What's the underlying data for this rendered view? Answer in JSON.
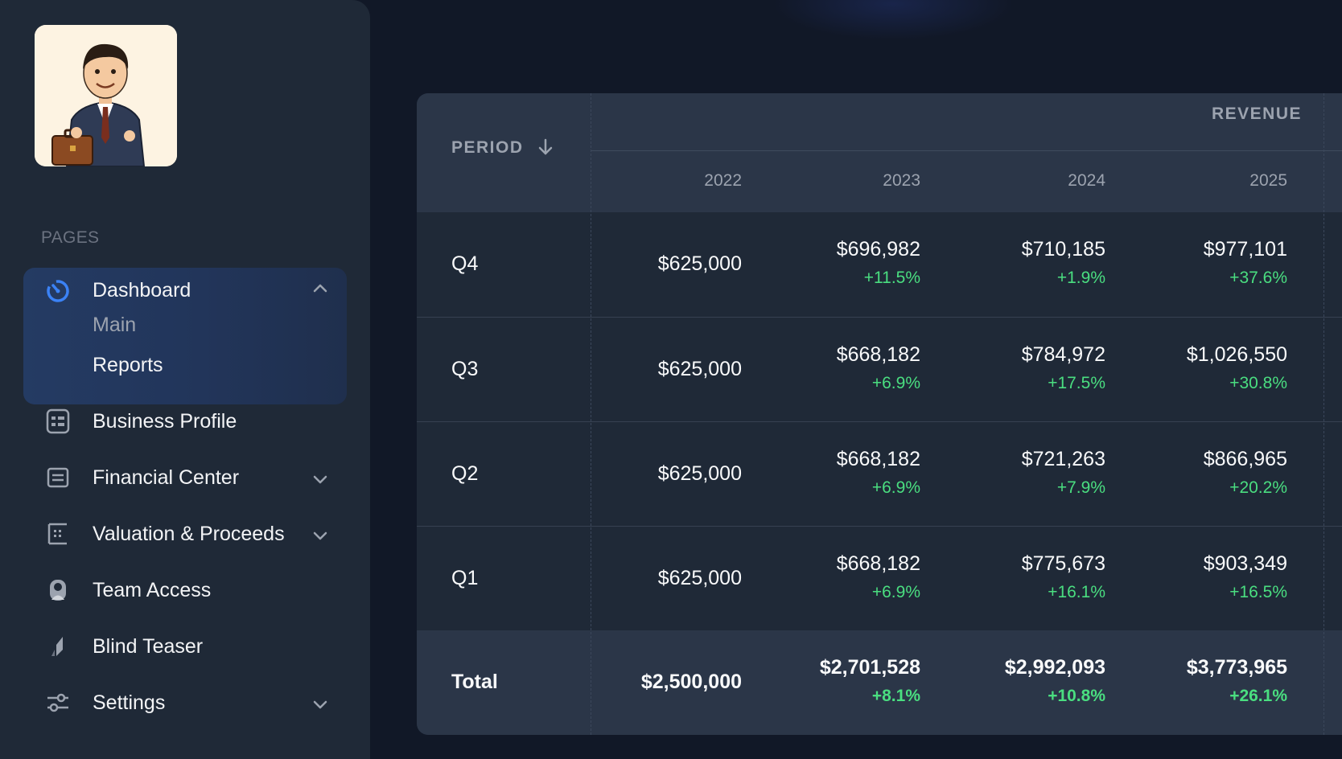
{
  "sidebar": {
    "section_label": "PAGES",
    "dashboard": {
      "label": "Dashboard",
      "sub_items": [
        "Main",
        "Reports"
      ]
    },
    "items": [
      {
        "label": "Business Profile",
        "icon": "id-card-icon"
      },
      {
        "label": "Financial Center",
        "icon": "document-icon"
      },
      {
        "label": "Valuation & Proceeds",
        "icon": "calculator-icon"
      },
      {
        "label": "Team Access",
        "icon": "user-icon"
      },
      {
        "label": "Blind Teaser",
        "icon": "teaser-icon"
      },
      {
        "label": "Settings",
        "icon": "sliders-icon"
      }
    ]
  },
  "table": {
    "period_header": "PERIOD",
    "group_header": "REVENUE",
    "years": [
      "2022",
      "2023",
      "2024",
      "2025"
    ],
    "rows": [
      {
        "period": "Q4",
        "v2022": "$625,000",
        "v2023": "$696,982",
        "c2023": "+11.5%",
        "v2024": "$710,185",
        "c2024": "+1.9%",
        "v2025": "$977,101",
        "c2025": "+37.6%"
      },
      {
        "period": "Q3",
        "v2022": "$625,000",
        "v2023": "$668,182",
        "c2023": "+6.9%",
        "v2024": "$784,972",
        "c2024": "+17.5%",
        "v2025": "$1,026,550",
        "c2025": "+30.8%"
      },
      {
        "period": "Q2",
        "v2022": "$625,000",
        "v2023": "$668,182",
        "c2023": "+6.9%",
        "v2024": "$721,263",
        "c2024": "+7.9%",
        "v2025": "$866,965",
        "c2025": "+20.2%"
      },
      {
        "period": "Q1",
        "v2022": "$625,000",
        "v2023": "$668,182",
        "c2023": "+6.9%",
        "v2024": "$775,673",
        "c2024": "+16.1%",
        "v2025": "$903,349",
        "c2025": "+16.5%"
      }
    ],
    "total": {
      "period": "Total",
      "v2022": "$2,500,000",
      "v2023": "$2,701,528",
      "c2023": "+8.1%",
      "v2024": "$2,992,093",
      "c2024": "+10.8%",
      "v2025": "$3,773,965",
      "c2025": "+26.1%"
    }
  },
  "colors": {
    "accent": "#3b82f6",
    "positive": "#4ade80",
    "background": "#111827",
    "panel": "#1f2937"
  }
}
